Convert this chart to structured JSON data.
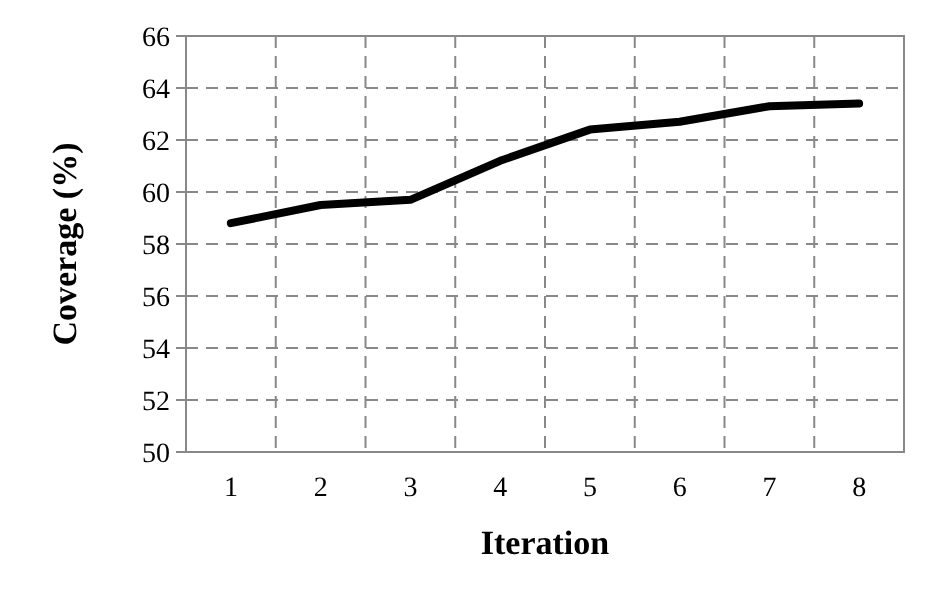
{
  "chart_data": {
    "type": "line",
    "xlabel": "Iteration",
    "ylabel": "Coverage (%)",
    "categories": [
      "1",
      "2",
      "3",
      "4",
      "5",
      "6",
      "7",
      "8"
    ],
    "series": [
      {
        "color": "#000000",
        "values": [
          58.8,
          59.5,
          59.7,
          61.2,
          62.4,
          62.7,
          63.3,
          63.4
        ]
      }
    ],
    "ylim": [
      50,
      66
    ],
    "yticks": [
      50,
      52,
      54,
      56,
      58,
      60,
      62,
      64,
      66
    ],
    "grid": true,
    "marker": "none",
    "line_style": "solid"
  }
}
